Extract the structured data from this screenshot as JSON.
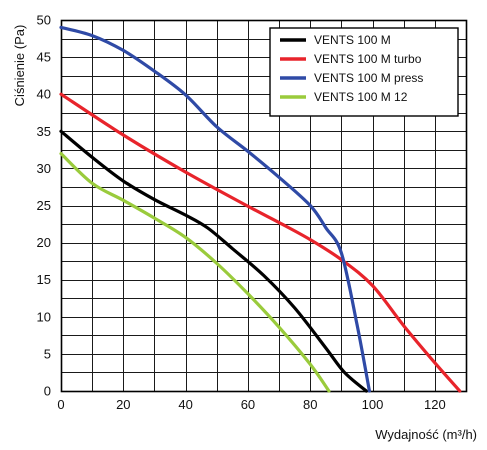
{
  "chart_data": {
    "type": "line",
    "xlabel": "Wydajność (m³/h)",
    "ylabel": "Ciśnienie (Pa)",
    "xlim": [
      0,
      130
    ],
    "ylim": [
      0,
      50
    ],
    "x_ticks": [
      "0",
      "20",
      "40",
      "60",
      "80",
      "100",
      "120"
    ],
    "y_ticks": [
      "0",
      "5",
      "10",
      "15",
      "20",
      "25",
      "30",
      "35",
      "40",
      "45",
      "50"
    ],
    "grid": true,
    "legend_position": "top-right",
    "series": [
      {
        "name": "VENTS 100 M",
        "color": "#000000",
        "points": [
          [
            0,
            35
          ],
          [
            10,
            31.5
          ],
          [
            20,
            28.3
          ],
          [
            30,
            25.8
          ],
          [
            40,
            23.7
          ],
          [
            47,
            22
          ],
          [
            55,
            19.2
          ],
          [
            65,
            15.6
          ],
          [
            75,
            11.2
          ],
          [
            85,
            5.8
          ],
          [
            91,
            2.5
          ],
          [
            98,
            0
          ]
        ]
      },
      {
        "name": "VENTS 100 M turbo",
        "color": "#e8242b",
        "points": [
          [
            0,
            40
          ],
          [
            20,
            34.5
          ],
          [
            40,
            29.5
          ],
          [
            60,
            24.9
          ],
          [
            70,
            22.7
          ],
          [
            80,
            20.4
          ],
          [
            90,
            17.7
          ],
          [
            100,
            14.2
          ],
          [
            110,
            8.8
          ],
          [
            120,
            3.8
          ],
          [
            128,
            0
          ]
        ]
      },
      {
        "name": "VENTS 100 M press",
        "color": "#2f4aa6",
        "points": [
          [
            0,
            49
          ],
          [
            10,
            47.9
          ],
          [
            20,
            45.9
          ],
          [
            30,
            43.1
          ],
          [
            40,
            39.9
          ],
          [
            50,
            35.6
          ],
          [
            60,
            32.3
          ],
          [
            70,
            28.8
          ],
          [
            80,
            25
          ],
          [
            85,
            22
          ],
          [
            90,
            18.6
          ],
          [
            95,
            9
          ],
          [
            99,
            0
          ]
        ]
      },
      {
        "name": "VENTS 100 M 12",
        "color": "#9acb3c",
        "points": [
          [
            0,
            32
          ],
          [
            10,
            28
          ],
          [
            20,
            25.7
          ],
          [
            30,
            23.3
          ],
          [
            40,
            20.7
          ],
          [
            50,
            17.2
          ],
          [
            60,
            13.1
          ],
          [
            70,
            8.6
          ],
          [
            80,
            3.6
          ],
          [
            86,
            0
          ]
        ]
      }
    ]
  }
}
